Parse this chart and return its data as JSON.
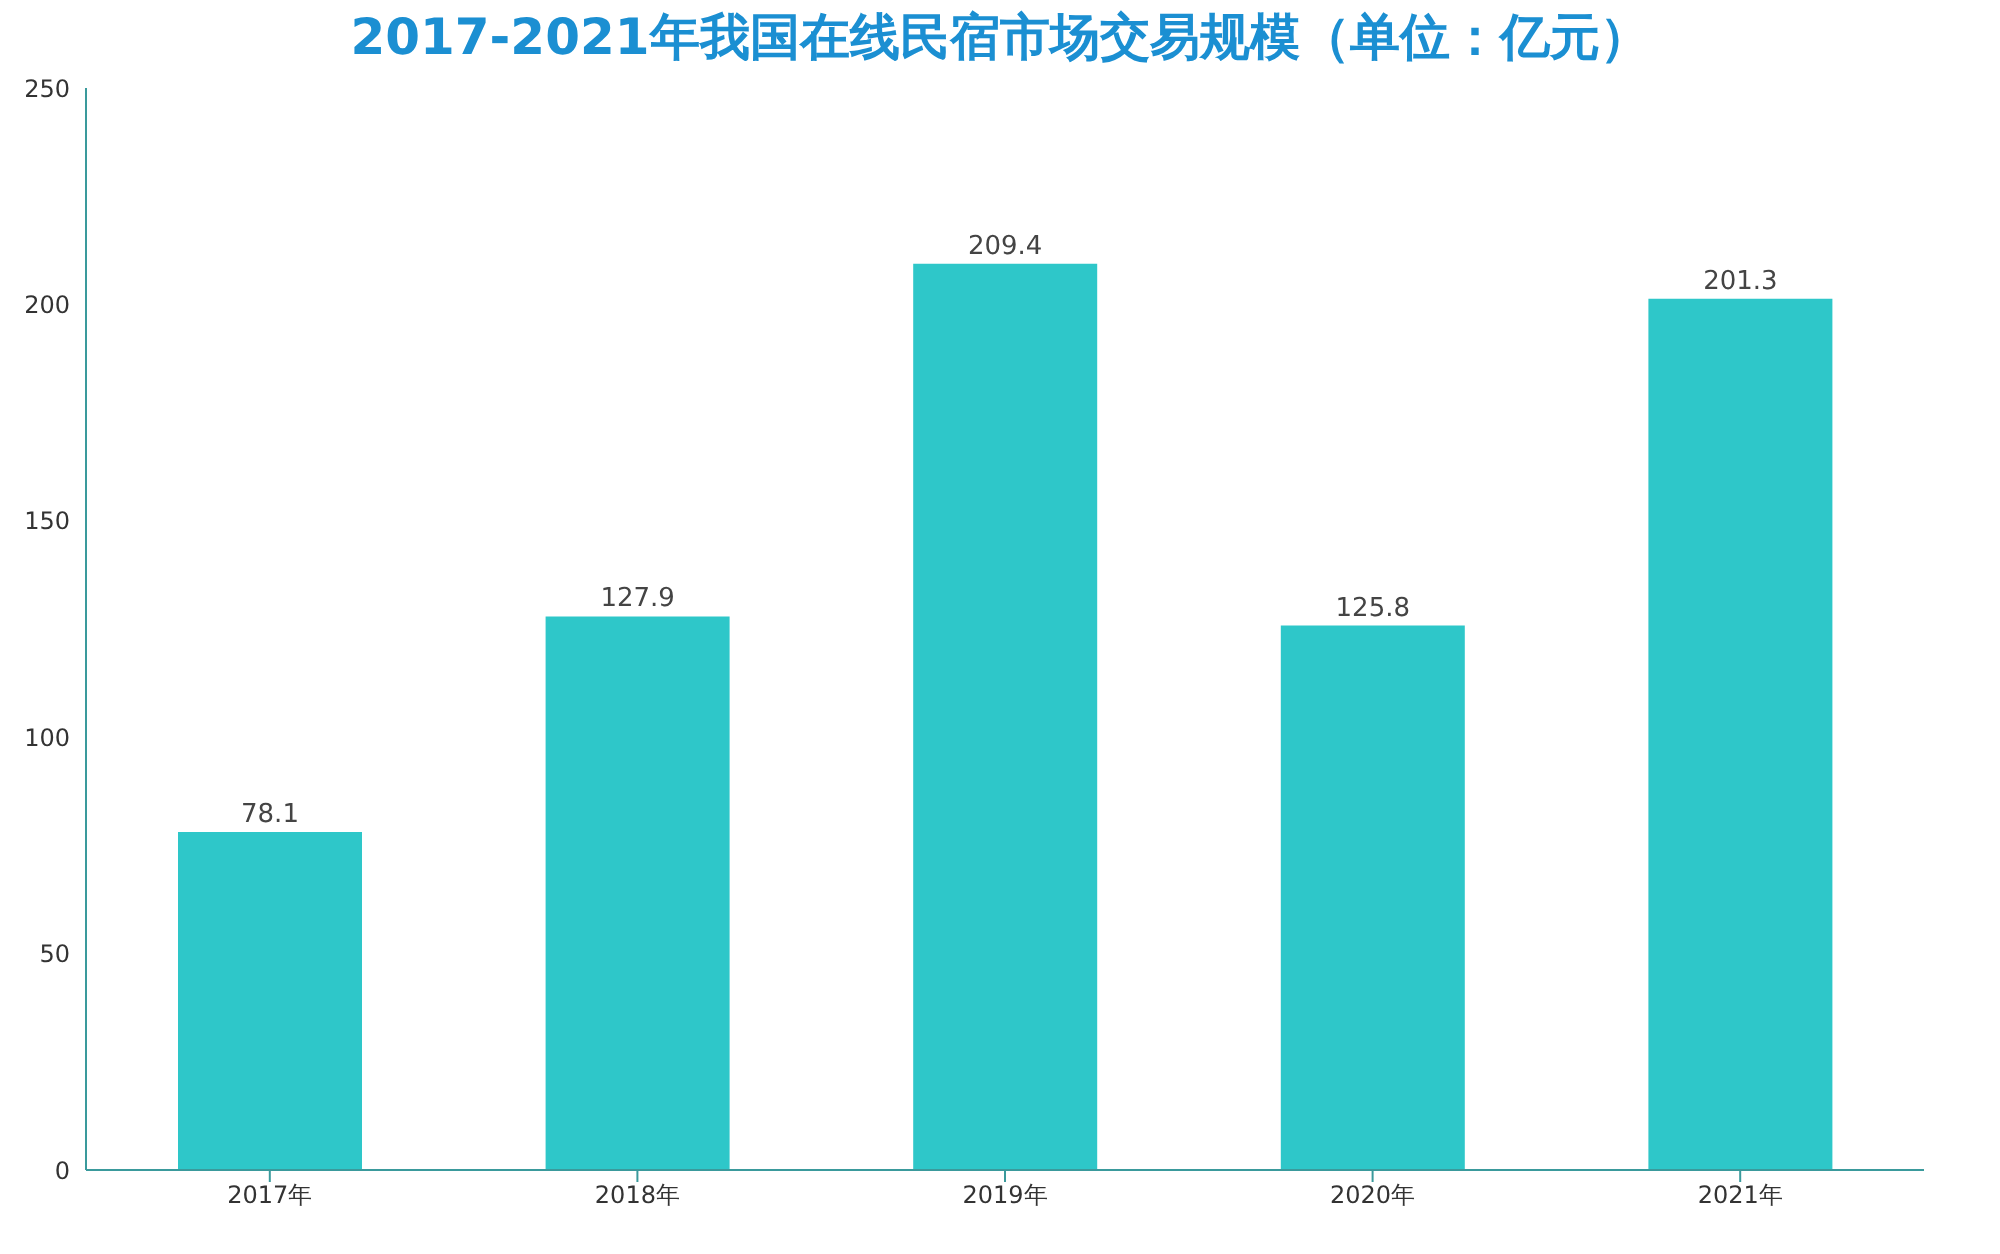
{
  "chart_data": {
    "type": "bar",
    "title": "2017-2021年我国在线民宿市场交易规模（单位：亿元）",
    "categories": [
      "2017年",
      "2018年",
      "2019年",
      "2020年",
      "2021年"
    ],
    "values": [
      78.1,
      127.9,
      209.4,
      125.8,
      201.3
    ],
    "color": "#2ec7c9",
    "ylim": [
      0,
      250
    ],
    "yticks": [
      0,
      50,
      100,
      150,
      200,
      250
    ],
    "data_labels": true
  }
}
